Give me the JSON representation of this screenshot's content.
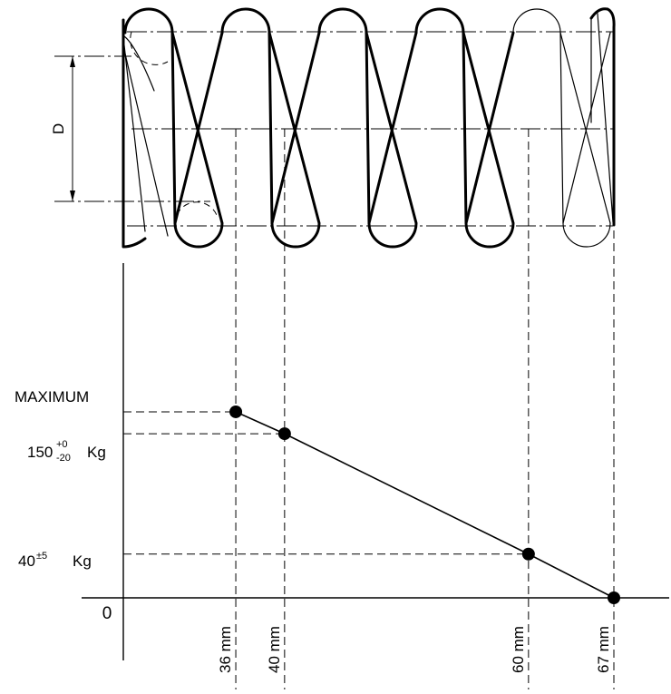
{
  "spring": {
    "coil_count": 5,
    "dimension_label": "D"
  },
  "chart_data": {
    "type": "line",
    "title": "",
    "xlabel": "",
    "ylabel": "",
    "origin_label": "0",
    "x_unit": "mm",
    "points": [
      {
        "x": 36,
        "y": 170,
        "x_label": "36 mm",
        "y_label": "MAXIMUM"
      },
      {
        "x": 40,
        "y": 150,
        "x_label": "40 mm",
        "y_label": "150",
        "y_tolerance_upper": "+0",
        "y_tolerance_lower": "-20",
        "y_unit": "Kg"
      },
      {
        "x": 60,
        "y": 40,
        "x_label": "60 mm",
        "y_label": "40",
        "y_tolerance": "±5",
        "y_unit": "Kg"
      },
      {
        "x": 67,
        "y": 0,
        "x_label": "67 mm"
      }
    ]
  }
}
